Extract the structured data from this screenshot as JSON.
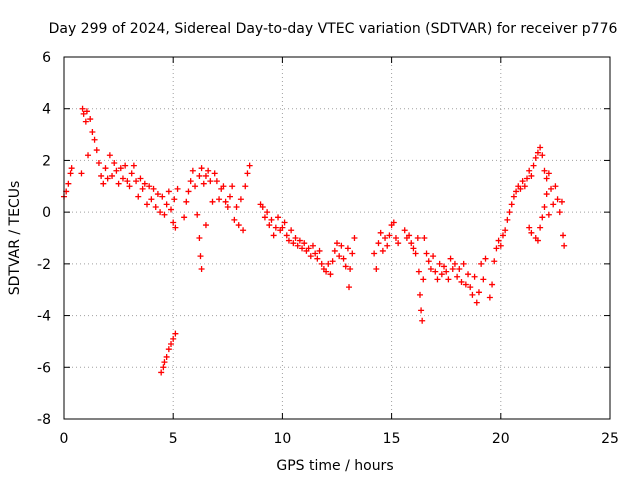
{
  "chart_data": {
    "type": "scatter",
    "title": "Day 299 of 2024, Sidereal Day-to-day VTEC variation (SDTVAR) for receiver p776",
    "xlabel": "GPS time / hours",
    "ylabel": "SDTVAR / TECUs",
    "xlim": [
      0,
      25
    ],
    "ylim": [
      -8,
      6
    ],
    "x_ticks": [
      0,
      5,
      10,
      15,
      20,
      25
    ],
    "y_ticks": [
      -8,
      -6,
      -4,
      -2,
      0,
      2,
      4,
      6
    ],
    "grid": true,
    "marker": "+",
    "series": [
      {
        "name": "SDTVAR",
        "color": "#ff0000",
        "points": [
          [
            0.0,
            0.6
          ],
          [
            0.1,
            0.8
          ],
          [
            0.2,
            1.1
          ],
          [
            0.3,
            1.5
          ],
          [
            0.35,
            1.7
          ],
          [
            0.8,
            1.5
          ],
          [
            0.85,
            4.0
          ],
          [
            0.9,
            3.8
          ],
          [
            1.0,
            3.5
          ],
          [
            1.05,
            3.9
          ],
          [
            1.1,
            2.2
          ],
          [
            1.2,
            3.6
          ],
          [
            1.3,
            3.1
          ],
          [
            1.4,
            2.8
          ],
          [
            1.5,
            2.4
          ],
          [
            1.6,
            1.9
          ],
          [
            1.7,
            1.4
          ],
          [
            1.8,
            1.1
          ],
          [
            1.9,
            1.7
          ],
          [
            2.0,
            1.3
          ],
          [
            2.1,
            2.2
          ],
          [
            2.2,
            1.4
          ],
          [
            2.3,
            1.9
          ],
          [
            2.4,
            1.6
          ],
          [
            2.5,
            1.1
          ],
          [
            2.6,
            1.7
          ],
          [
            2.7,
            1.3
          ],
          [
            2.8,
            1.8
          ],
          [
            2.9,
            1.2
          ],
          [
            3.0,
            1.0
          ],
          [
            3.1,
            1.5
          ],
          [
            3.2,
            1.8
          ],
          [
            3.3,
            1.2
          ],
          [
            3.4,
            0.6
          ],
          [
            3.5,
            1.3
          ],
          [
            3.6,
            0.9
          ],
          [
            3.7,
            1.1
          ],
          [
            3.8,
            0.3
          ],
          [
            3.9,
            1.0
          ],
          [
            4.0,
            0.5
          ],
          [
            4.1,
            0.9
          ],
          [
            4.2,
            0.2
          ],
          [
            4.3,
            0.7
          ],
          [
            4.4,
            0.0
          ],
          [
            4.5,
            0.6
          ],
          [
            4.6,
            -0.1
          ],
          [
            4.7,
            0.3
          ],
          [
            4.8,
            0.8
          ],
          [
            4.9,
            0.1
          ],
          [
            5.0,
            -0.4
          ],
          [
            5.05,
            0.5
          ],
          [
            5.1,
            -0.6
          ],
          [
            5.2,
            0.9
          ],
          [
            4.45,
            -6.2
          ],
          [
            4.55,
            -6.0
          ],
          [
            4.6,
            -5.8
          ],
          [
            4.7,
            -5.6
          ],
          [
            4.8,
            -5.3
          ],
          [
            4.9,
            -5.1
          ],
          [
            5.0,
            -4.9
          ],
          [
            5.1,
            -4.7
          ],
          [
            5.5,
            -0.2
          ],
          [
            5.6,
            0.4
          ],
          [
            5.7,
            0.8
          ],
          [
            5.8,
            1.2
          ],
          [
            5.9,
            1.6
          ],
          [
            6.0,
            1.0
          ],
          [
            6.1,
            -0.1
          ],
          [
            6.2,
            1.4
          ],
          [
            6.3,
            1.7
          ],
          [
            6.4,
            1.1
          ],
          [
            6.5,
            1.4
          ],
          [
            6.6,
            1.6
          ],
          [
            6.7,
            1.2
          ],
          [
            6.8,
            0.4
          ],
          [
            6.9,
            1.5
          ],
          [
            7.0,
            1.2
          ],
          [
            7.1,
            0.5
          ],
          [
            7.2,
            0.9
          ],
          [
            7.3,
            1.0
          ],
          [
            7.4,
            0.4
          ],
          [
            7.5,
            0.2
          ],
          [
            7.6,
            0.6
          ],
          [
            7.7,
            1.0
          ],
          [
            7.8,
            -0.3
          ],
          [
            7.9,
            0.2
          ],
          [
            8.0,
            -0.5
          ],
          [
            8.1,
            0.5
          ],
          [
            8.2,
            -0.7
          ],
          [
            8.3,
            1.0
          ],
          [
            8.4,
            1.5
          ],
          [
            8.5,
            1.8
          ],
          [
            6.2,
            -1.0
          ],
          [
            6.25,
            -1.7
          ],
          [
            6.3,
            -2.2
          ],
          [
            6.5,
            -0.5
          ],
          [
            9.0,
            0.3
          ],
          [
            9.1,
            0.2
          ],
          [
            9.2,
            -0.2
          ],
          [
            9.3,
            0.0
          ],
          [
            9.4,
            -0.5
          ],
          [
            9.5,
            -0.3
          ],
          [
            9.6,
            -0.9
          ],
          [
            9.7,
            -0.6
          ],
          [
            9.8,
            -0.2
          ],
          [
            9.9,
            -0.7
          ],
          [
            10.0,
            -0.6
          ],
          [
            10.1,
            -0.4
          ],
          [
            10.2,
            -0.9
          ],
          [
            10.3,
            -1.1
          ],
          [
            10.4,
            -0.7
          ],
          [
            10.5,
            -1.2
          ],
          [
            10.6,
            -1.0
          ],
          [
            10.7,
            -1.3
          ],
          [
            10.8,
            -1.1
          ],
          [
            10.9,
            -1.4
          ],
          [
            11.0,
            -1.2
          ],
          [
            11.1,
            -1.5
          ],
          [
            11.2,
            -1.4
          ],
          [
            11.3,
            -1.7
          ],
          [
            11.4,
            -1.3
          ],
          [
            11.5,
            -1.6
          ],
          [
            11.6,
            -1.8
          ],
          [
            11.7,
            -1.5
          ],
          [
            11.8,
            -2.0
          ],
          [
            11.9,
            -2.2
          ],
          [
            12.0,
            -2.3
          ],
          [
            12.1,
            -2.0
          ],
          [
            12.2,
            -2.4
          ],
          [
            12.3,
            -1.9
          ],
          [
            12.4,
            -1.5
          ],
          [
            12.5,
            -1.2
          ],
          [
            12.6,
            -1.7
          ],
          [
            12.7,
            -1.3
          ],
          [
            12.8,
            -1.8
          ],
          [
            12.9,
            -2.1
          ],
          [
            13.0,
            -1.4
          ],
          [
            13.05,
            -2.9
          ],
          [
            13.1,
            -2.2
          ],
          [
            13.2,
            -1.6
          ],
          [
            13.3,
            -1.0
          ],
          [
            14.2,
            -1.6
          ],
          [
            14.3,
            -2.2
          ],
          [
            14.4,
            -1.2
          ],
          [
            14.5,
            -0.8
          ],
          [
            14.6,
            -1.5
          ],
          [
            14.7,
            -1.0
          ],
          [
            14.8,
            -1.3
          ],
          [
            14.9,
            -0.9
          ],
          [
            15.0,
            -0.5
          ],
          [
            15.1,
            -0.4
          ],
          [
            15.2,
            -1.0
          ],
          [
            15.3,
            -1.2
          ],
          [
            15.6,
            -0.7
          ],
          [
            15.7,
            -1.0
          ],
          [
            15.8,
            -0.9
          ],
          [
            15.9,
            -1.2
          ],
          [
            16.0,
            -1.4
          ],
          [
            16.1,
            -1.6
          ],
          [
            16.2,
            -1.0
          ],
          [
            16.25,
            -2.3
          ],
          [
            16.3,
            -3.2
          ],
          [
            16.35,
            -3.8
          ],
          [
            16.4,
            -4.2
          ],
          [
            16.45,
            -2.6
          ],
          [
            16.5,
            -1.0
          ],
          [
            16.6,
            -1.6
          ],
          [
            16.7,
            -1.9
          ],
          [
            16.8,
            -2.2
          ],
          [
            16.9,
            -1.7
          ],
          [
            17.0,
            -2.3
          ],
          [
            17.1,
            -2.6
          ],
          [
            17.2,
            -2.0
          ],
          [
            17.3,
            -2.4
          ],
          [
            17.4,
            -2.1
          ],
          [
            17.5,
            -2.3
          ],
          [
            17.6,
            -2.6
          ],
          [
            17.7,
            -1.8
          ],
          [
            17.8,
            -2.2
          ],
          [
            17.9,
            -2.0
          ],
          [
            18.0,
            -2.5
          ],
          [
            18.1,
            -2.2
          ],
          [
            18.2,
            -2.7
          ],
          [
            18.3,
            -2.0
          ],
          [
            18.4,
            -2.8
          ],
          [
            18.5,
            -2.4
          ],
          [
            18.6,
            -2.9
          ],
          [
            18.7,
            -3.2
          ],
          [
            18.8,
            -2.5
          ],
          [
            18.9,
            -3.5
          ],
          [
            19.0,
            -3.1
          ],
          [
            19.1,
            -2.0
          ],
          [
            19.2,
            -2.6
          ],
          [
            19.3,
            -1.8
          ],
          [
            19.5,
            -3.3
          ],
          [
            19.6,
            -2.8
          ],
          [
            19.7,
            -1.9
          ],
          [
            19.8,
            -1.4
          ],
          [
            19.9,
            -1.1
          ],
          [
            20.0,
            -1.3
          ],
          [
            20.1,
            -0.9
          ],
          [
            20.2,
            -0.7
          ],
          [
            20.3,
            -0.3
          ],
          [
            20.4,
            0.0
          ],
          [
            20.5,
            0.3
          ],
          [
            20.6,
            0.6
          ],
          [
            20.7,
            0.8
          ],
          [
            20.8,
            1.0
          ],
          [
            20.9,
            0.9
          ],
          [
            21.0,
            1.2
          ],
          [
            21.1,
            1.0
          ],
          [
            21.2,
            1.3
          ],
          [
            21.3,
            1.6
          ],
          [
            21.4,
            1.4
          ],
          [
            21.5,
            1.8
          ],
          [
            21.6,
            2.1
          ],
          [
            21.7,
            2.3
          ],
          [
            21.8,
            2.5
          ],
          [
            21.9,
            2.2
          ],
          [
            22.0,
            1.6
          ],
          [
            22.1,
            1.3
          ],
          [
            22.2,
            1.5
          ],
          [
            22.3,
            0.9
          ],
          [
            22.4,
            0.3
          ],
          [
            22.5,
            1.0
          ],
          [
            22.6,
            0.5
          ],
          [
            22.7,
            0.0
          ],
          [
            22.8,
            0.4
          ],
          [
            22.85,
            -0.9
          ],
          [
            22.9,
            -1.3
          ],
          [
            21.3,
            -0.6
          ],
          [
            21.4,
            -0.8
          ],
          [
            21.6,
            -1.0
          ],
          [
            21.7,
            -1.1
          ],
          [
            21.8,
            -0.6
          ],
          [
            21.9,
            -0.2
          ],
          [
            22.0,
            0.2
          ],
          [
            22.1,
            0.7
          ],
          [
            22.2,
            -0.1
          ]
        ]
      }
    ]
  }
}
